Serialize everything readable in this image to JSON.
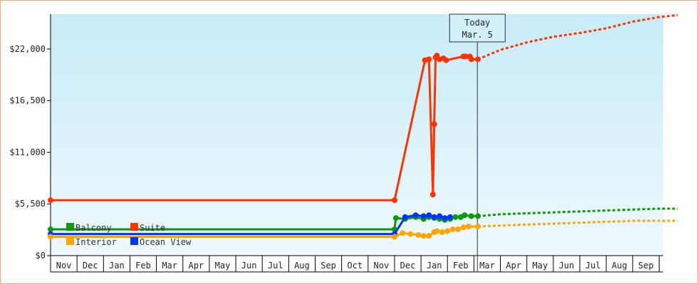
{
  "chart_data": {
    "type": "line",
    "title": "",
    "xlabel": "",
    "ylabel": "",
    "ylim": [
      0,
      25700
    ],
    "y_ticks": [
      {
        "value": 0,
        "label": "$0"
      },
      {
        "value": 5500,
        "label": "$5,500"
      },
      {
        "value": 11000,
        "label": "$11,000"
      },
      {
        "value": 16500,
        "label": "$16,500"
      },
      {
        "value": 22000,
        "label": "$22,000"
      }
    ],
    "months": [
      "Nov",
      "Dec",
      "Jan",
      "Feb",
      "Mar",
      "Apr",
      "May",
      "Jun",
      "Jul",
      "Aug",
      "Sep",
      "Oct",
      "Nov",
      "Dec",
      "Jan",
      "Feb",
      "Mar",
      "Apr",
      "May",
      "Jun",
      "Jul",
      "Aug",
      "Sep"
    ],
    "today": {
      "line1": "Today",
      "line2": "Mar. 5",
      "month_index": 16.13
    },
    "grid": false,
    "background": [
      "#c8ecf8",
      "#eef9fd"
    ],
    "legend": {
      "placement": "bottom-left",
      "entries": [
        {
          "name": "Balcony",
          "color": "#0a9a0a"
        },
        {
          "name": "Suite",
          "color": "#ff3300"
        },
        {
          "name": "Interior",
          "color": "#ffa500"
        },
        {
          "name": "Ocean View",
          "color": "#0033ff"
        }
      ]
    },
    "series": [
      {
        "name": "Suite",
        "color": "#ff3300",
        "points": [
          [
            0,
            5900
          ],
          [
            13,
            5900
          ],
          [
            14.15,
            20800
          ],
          [
            14.3,
            20900
          ],
          [
            14.45,
            6500
          ],
          [
            14.5,
            14000
          ],
          [
            14.55,
            21100
          ],
          [
            14.6,
            21300
          ],
          [
            14.7,
            20900
          ],
          [
            14.85,
            21000
          ],
          [
            14.95,
            20800
          ],
          [
            15.6,
            21200
          ],
          [
            15.7,
            21200
          ],
          [
            15.85,
            21200
          ],
          [
            15.9,
            20900
          ],
          [
            16.15,
            20900
          ]
        ],
        "forecast": [
          [
            16.15,
            20900
          ],
          [
            17,
            21900
          ],
          [
            18,
            22700
          ],
          [
            19,
            23300
          ],
          [
            20,
            23700
          ],
          [
            21,
            24200
          ],
          [
            22,
            24900
          ],
          [
            23,
            25400
          ],
          [
            23.7,
            25600
          ]
        ]
      },
      {
        "name": "Balcony",
        "color": "#0a9a0a",
        "points": [
          [
            0,
            2800
          ],
          [
            13,
            2800
          ],
          [
            13.05,
            4000
          ],
          [
            13.4,
            3900
          ],
          [
            13.8,
            4100
          ],
          [
            14.1,
            3900
          ],
          [
            14.3,
            4100
          ],
          [
            14.5,
            4000
          ],
          [
            14.7,
            3900
          ],
          [
            14.9,
            3800
          ],
          [
            15.1,
            3900
          ],
          [
            15.3,
            4100
          ],
          [
            15.5,
            4100
          ],
          [
            15.65,
            4300
          ],
          [
            15.9,
            4200
          ],
          [
            16.15,
            4200
          ]
        ],
        "forecast": [
          [
            16.15,
            4200
          ],
          [
            17,
            4400
          ],
          [
            18,
            4500
          ],
          [
            19,
            4600
          ],
          [
            20,
            4700
          ],
          [
            21,
            4800
          ],
          [
            22,
            4900
          ],
          [
            23,
            5000
          ],
          [
            23.7,
            5000
          ]
        ]
      },
      {
        "name": "Ocean View",
        "color": "#0033ff",
        "points": [
          [
            0,
            2300
          ],
          [
            13,
            2300
          ],
          [
            13.4,
            4100
          ],
          [
            13.8,
            4300
          ],
          [
            14.1,
            4200
          ],
          [
            14.3,
            4300
          ],
          [
            14.5,
            4100
          ],
          [
            14.7,
            4200
          ],
          [
            14.9,
            4000
          ],
          [
            15.1,
            4100
          ]
        ],
        "forecast": []
      },
      {
        "name": "Interior",
        "color": "#ffa500",
        "points": [
          [
            0,
            2000
          ],
          [
            13,
            2000
          ],
          [
            13.3,
            2400
          ],
          [
            13.6,
            2300
          ],
          [
            13.9,
            2200
          ],
          [
            14.1,
            2100
          ],
          [
            14.3,
            2100
          ],
          [
            14.5,
            2500
          ],
          [
            14.6,
            2600
          ],
          [
            14.8,
            2500
          ],
          [
            15.0,
            2600
          ],
          [
            15.2,
            2800
          ],
          [
            15.4,
            2800
          ],
          [
            15.6,
            3000
          ],
          [
            15.8,
            3100
          ],
          [
            16.15,
            3100
          ]
        ],
        "forecast": [
          [
            16.15,
            3100
          ],
          [
            17,
            3200
          ],
          [
            18,
            3300
          ],
          [
            19,
            3400
          ],
          [
            20,
            3500
          ],
          [
            21,
            3600
          ],
          [
            22,
            3700
          ],
          [
            23,
            3700
          ],
          [
            23.7,
            3700
          ]
        ]
      }
    ]
  }
}
